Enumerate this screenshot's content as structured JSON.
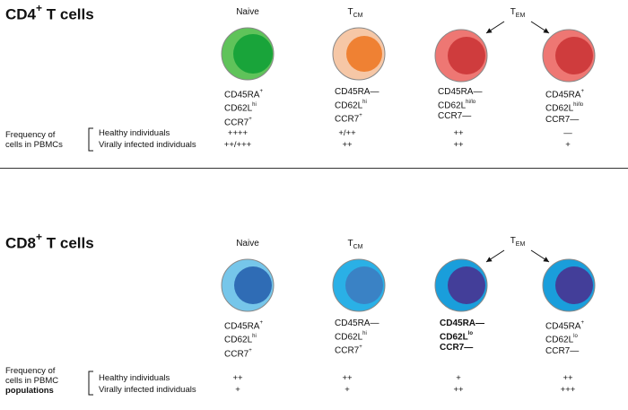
{
  "cd4": {
    "title_main": "CD4",
    "title_sup": "+",
    "title_rest": " T cells",
    "types": [
      {
        "label": "Naive",
        "sub": ""
      },
      {
        "label": "T",
        "sub": "CM"
      },
      {
        "label": "T",
        "sub": "EM"
      }
    ],
    "cells": [
      {
        "outer": "#5fc35a",
        "inner": "#19a43a",
        "border": "#888888"
      },
      {
        "outer": "#f6c7a6",
        "inner": "#ef8133",
        "border": "#888888"
      },
      {
        "outer": "#ee7773",
        "inner": "#cf3c3d",
        "border": "#888888"
      },
      {
        "outer": "#ee7773",
        "inner": "#cf3c3d",
        "border": "#888888"
      }
    ],
    "markers": [
      [
        {
          "t": "CD45RA",
          "s": "+"
        },
        {
          "t": "CD62L",
          "s": "hi"
        },
        {
          "t": "CCR7",
          "s": "+"
        }
      ],
      [
        {
          "t": "CD45RA",
          "s": "—"
        },
        {
          "t": "CD62L",
          "s": "hi"
        },
        {
          "t": "CCR7",
          "s": "+"
        }
      ],
      [
        {
          "t": "CD45RA",
          "s": "—"
        },
        {
          "t": "CD62L",
          "s": "hi/lo"
        },
        {
          "t": "CCR7",
          "s": "—"
        }
      ],
      [
        {
          "t": "CD45RA",
          "s": "+"
        },
        {
          "t": "CD62L",
          "s": "hi/lo"
        },
        {
          "t": "CCR7",
          "s": "—"
        }
      ]
    ],
    "freq_label": [
      "Frequency of",
      "cells in PBMCs"
    ],
    "rows": [
      {
        "label": "Healthy individuals",
        "values": [
          "++++",
          "+/++",
          "++",
          "—"
        ]
      },
      {
        "label": "Virally infected individuals",
        "values": [
          "++/+++",
          "++",
          "++",
          "+"
        ]
      }
    ]
  },
  "cd8": {
    "title_main": "CD8",
    "title_sup": "+",
    "title_rest": " T cells",
    "types": [
      {
        "label": "Naive",
        "sub": ""
      },
      {
        "label": "T",
        "sub": "CM"
      },
      {
        "label": "T",
        "sub": "EM"
      }
    ],
    "cells": [
      {
        "outer": "#76c6ea",
        "inner": "#2f6cb5",
        "border": "#888888"
      },
      {
        "outer": "#2ab0e6",
        "inner": "#3a82c5",
        "border": "#888888"
      },
      {
        "outer": "#1a9edb",
        "inner": "#433e99",
        "border": "#888888"
      },
      {
        "outer": "#1a9edb",
        "inner": "#433e99",
        "border": "#888888"
      }
    ],
    "markers": [
      [
        {
          "t": "CD45RA",
          "s": "+"
        },
        {
          "t": "CD62L",
          "s": "hi"
        },
        {
          "t": "CCR7",
          "s": "+"
        }
      ],
      [
        {
          "t": "CD45RA",
          "s": "—"
        },
        {
          "t": "CD62L",
          "s": "hi"
        },
        {
          "t": "CCR7",
          "s": "+"
        }
      ],
      [
        {
          "t": "CD45RA",
          "s": "—"
        },
        {
          "t": "CD62L",
          "s": "lo"
        },
        {
          "t": "CCR7",
          "s": "—"
        }
      ],
      [
        {
          "t": "CD45RA",
          "s": "+"
        },
        {
          "t": "CD62L",
          "s": "lo"
        },
        {
          "t": "CCR7",
          "s": "—"
        }
      ]
    ],
    "freq_label": [
      "Frequency of",
      "cells in PBMC",
      "populations"
    ],
    "rows": [
      {
        "label": "Healthy individuals",
        "values": [
          "++",
          "++",
          "+",
          "++"
        ]
      },
      {
        "label": "Virally infected individuals",
        "values": [
          "+",
          "+",
          "++",
          "+++"
        ]
      }
    ]
  }
}
